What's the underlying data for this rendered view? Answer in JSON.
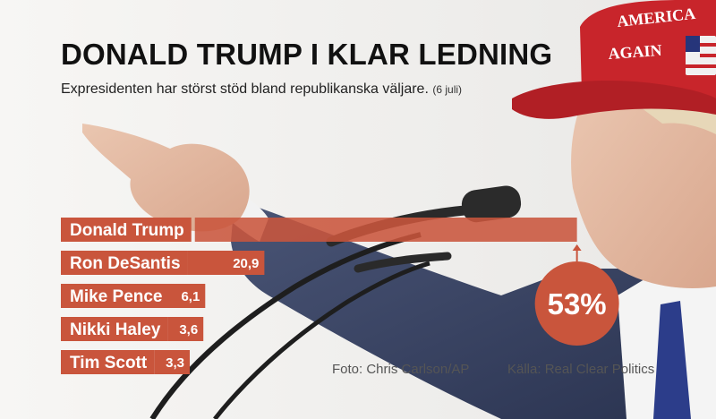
{
  "header": {
    "title": "DONALD TRUMP I KLAR LEDNING",
    "subtitle": "Expresidenten har störst stöd bland republikanska väljare.",
    "date": "(6 juli)"
  },
  "credits": {
    "photo": "Foto: Chris Carlson/AP",
    "source": "Källa: Real Clear Politics"
  },
  "cap": {
    "line1": "AMERICA",
    "line2": "AGAIN"
  },
  "colors": {
    "bar": "#c9553c",
    "callout": "#c9553c",
    "cap": "#c8252b"
  },
  "chart_data": {
    "type": "bar",
    "orientation": "horizontal",
    "categories": [
      "Donald Trump",
      "Ron DeSantis",
      "Mike Pence",
      "Nikki Haley",
      "Tim Scott"
    ],
    "values": [
      53,
      20.9,
      6.1,
      3.6,
      3.3
    ],
    "value_labels": [
      "53%",
      "20,9",
      "6,1",
      "3,6",
      "3,3"
    ],
    "title": "DONALD TRUMP I KLAR LEDNING",
    "subtitle": "Expresidenten har störst stöd bland republikanska väljare.",
    "unit": "%",
    "grid": false,
    "legend": "none"
  }
}
